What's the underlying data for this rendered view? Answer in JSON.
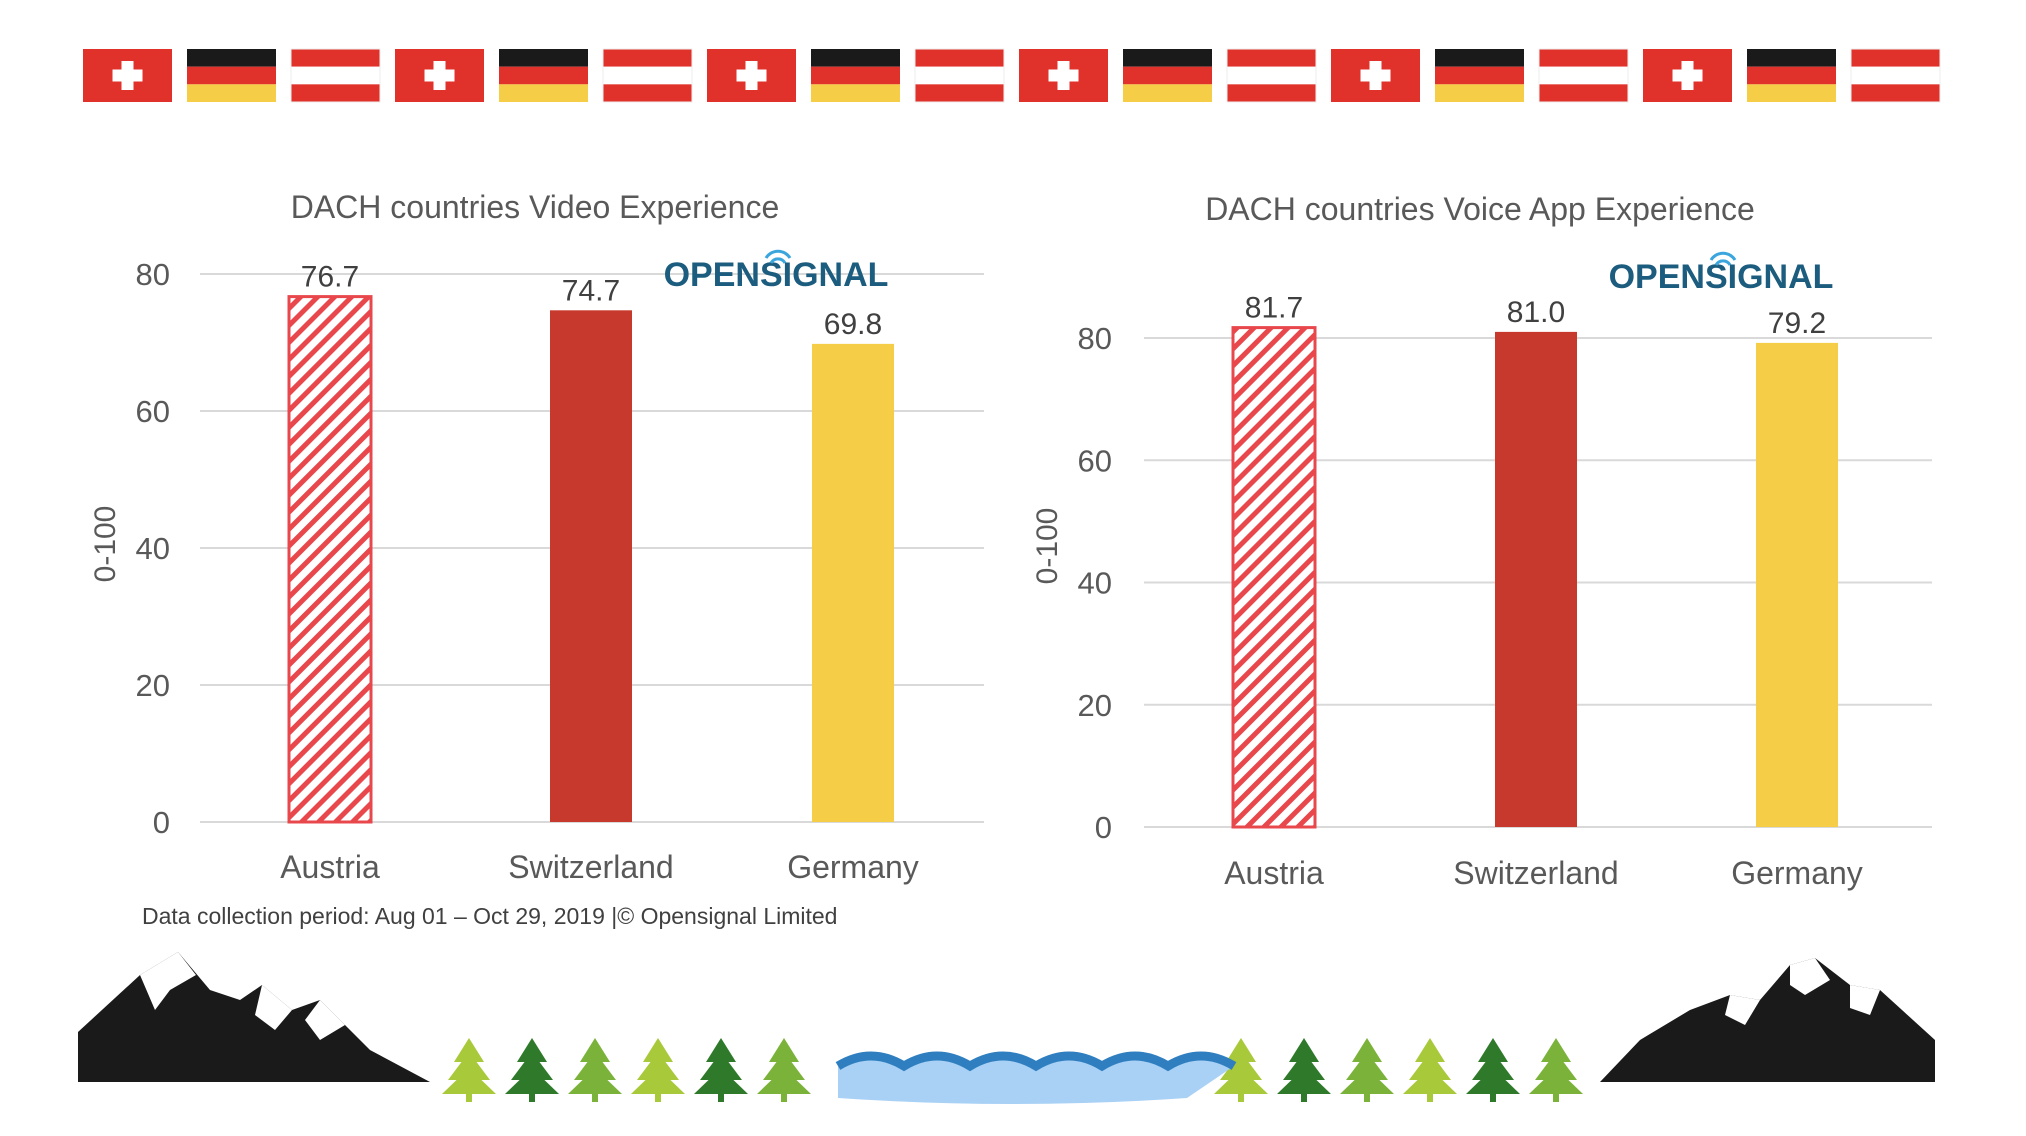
{
  "colors": {
    "austria": "#e8474c",
    "switzerland": "#c8392d",
    "germany": "#f5cd47",
    "grid": "#d9d9d9",
    "logo": "#1c5c7e",
    "logo_signal": "#3aa6dd"
  },
  "flags": [
    "swiss",
    "german",
    "austrian",
    "swiss",
    "german",
    "austrian",
    "swiss",
    "german",
    "austrian",
    "swiss",
    "german",
    "austrian",
    "swiss",
    "german",
    "austrian",
    "swiss",
    "german",
    "austrian"
  ],
  "logo_text": "OPENSIGNAL",
  "footer": "Data collection period: Aug 01 – Oct 29, 2019 |© Opensignal Limited",
  "chart_data": [
    {
      "type": "bar",
      "title": "DACH countries Video Experience",
      "ylabel": "0-100",
      "ylim": [
        0,
        80
      ],
      "yticks": [
        0,
        20,
        40,
        60,
        80
      ],
      "grid": true,
      "categories": [
        "Austria",
        "Switzerland",
        "Germany"
      ],
      "values": [
        76.7,
        74.7,
        69.8
      ],
      "value_labels": [
        "76.7",
        "74.7",
        "69.8"
      ],
      "bar_styles": [
        "hatched",
        "solid",
        "solid"
      ]
    },
    {
      "type": "bar",
      "title": "DACH countries Voice App Experience",
      "ylabel": "0-100",
      "ylim": [
        0,
        80
      ],
      "yticks": [
        0,
        20,
        40,
        60,
        80
      ],
      "grid": true,
      "categories": [
        "Austria",
        "Switzerland",
        "Germany"
      ],
      "values": [
        81.7,
        81.0,
        79.2
      ],
      "value_labels": [
        "81.7",
        "81.0",
        "79.2"
      ],
      "bar_styles": [
        "hatched",
        "solid",
        "solid"
      ]
    }
  ]
}
